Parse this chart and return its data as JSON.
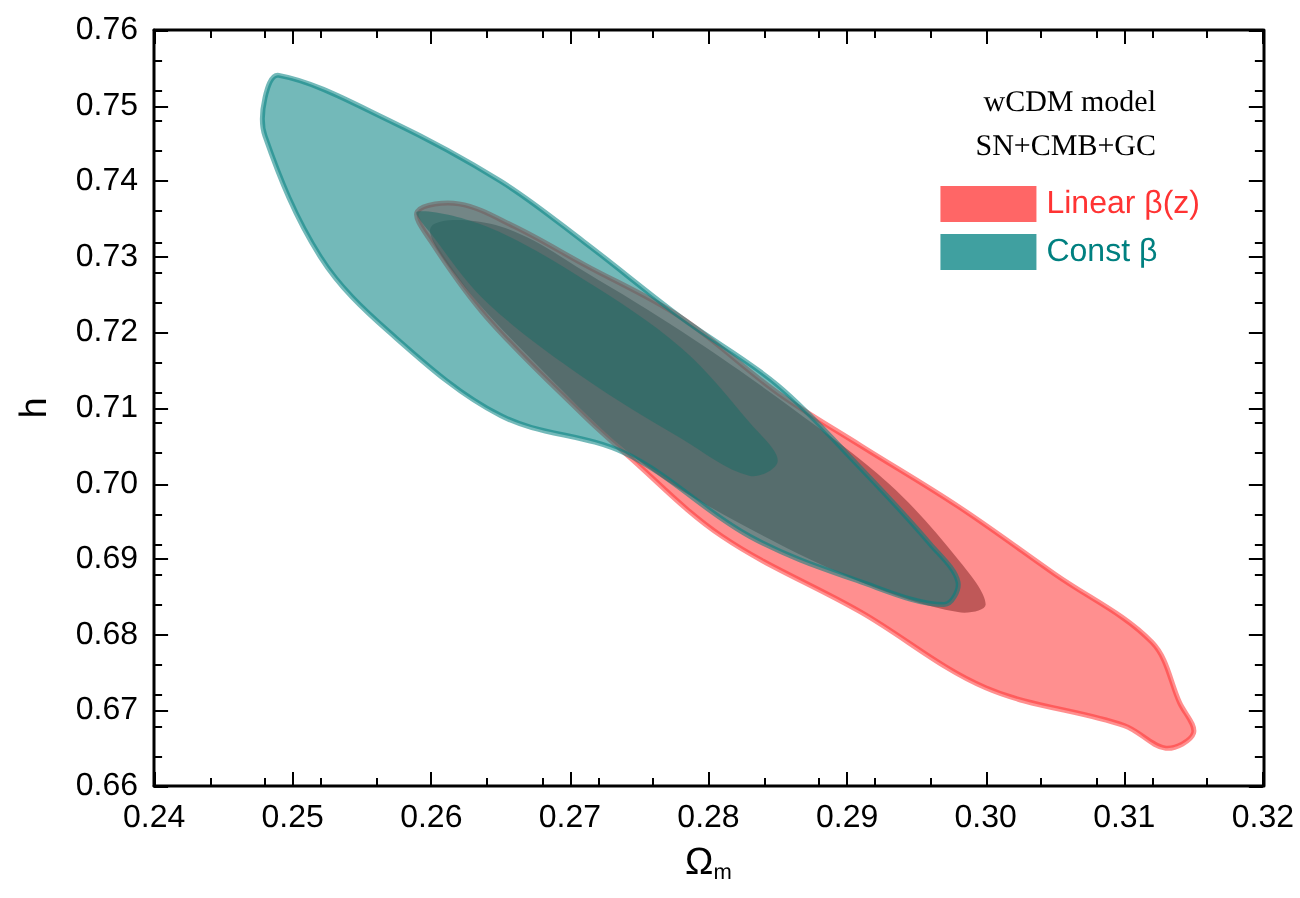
{
  "chart_data": {
    "type": "area",
    "xlabel": "Ω$_{m}$",
    "ylabel": "h",
    "annotations": [
      "wCDM model",
      "SN+CMB+GC"
    ],
    "xlim": [
      0.24,
      0.32
    ],
    "xticks": [
      0.24,
      0.25,
      0.26,
      0.27,
      0.28,
      0.29,
      {
        "value": 0.3,
        "label": "0.30"
      },
      0.31,
      {
        "value": 0.32,
        "label": "0.32"
      }
    ],
    "ylim": [
      0.66,
      0.76
    ],
    "yticks": [
      0.66,
      0.67,
      0.68,
      0.69,
      {
        "value": 0.7,
        "label": "0.70"
      },
      0.71,
      0.72,
      0.73,
      0.74,
      0.75,
      0.76
    ],
    "grid": false,
    "legend": "top right",
    "series": [
      {
        "name": "Linear β(z)",
        "color": "#ff3333",
        "x": [
          0.259,
          0.262,
          0.266,
          0.271,
          0.278,
          0.285,
          0.291,
          0.298,
          0.305,
          0.312,
          0.314,
          0.315,
          0.313,
          0.31,
          0.3,
          0.291,
          0.281,
          0.274,
          0.271,
          0.264,
          0.26
        ],
        "values": [
          0.736,
          0.737,
          0.734,
          0.729,
          0.722,
          0.712,
          0.705,
          0.697,
          0.688,
          0.679,
          0.671,
          0.667,
          0.665,
          0.668,
          0.673,
          0.683,
          0.693,
          0.704,
          0.709,
          0.722,
          0.732
        ]
      },
      {
        "color": "#8b2c2c",
        "x": [
          0.26,
          0.265,
          0.272,
          0.279,
          0.286,
          0.293,
          0.298,
          0.3,
          0.298,
          0.291,
          0.282,
          0.275,
          0.268,
          0.262
        ],
        "values": [
          0.734,
          0.734,
          0.727,
          0.719,
          0.71,
          0.7,
          0.69,
          0.684,
          0.683,
          0.687,
          0.695,
          0.703,
          0.715,
          0.727
        ]
      },
      {
        "name": "Const β",
        "color": "#008080",
        "x": [
          0.248,
          0.249,
          0.257,
          0.265,
          0.271,
          0.278,
          0.285,
          0.291,
          0.296,
          0.298,
          0.297,
          0.291,
          0.283,
          0.274,
          0.265,
          0.257,
          0.252,
          0.248
        ],
        "values": [
          0.751,
          0.754,
          0.748,
          0.74,
          0.732,
          0.722,
          0.713,
          0.702,
          0.692,
          0.687,
          0.684,
          0.687,
          0.693,
          0.704,
          0.709,
          0.72,
          0.73,
          0.746
        ]
      },
      {
        "color": "#1f6b66",
        "x": [
          0.259,
          0.264,
          0.271,
          0.278,
          0.283,
          0.285,
          0.283,
          0.278,
          0.271,
          0.264,
          0.26
        ],
        "values": [
          0.736,
          0.734,
          0.727,
          0.718,
          0.708,
          0.703,
          0.701,
          0.706,
          0.714,
          0.724,
          0.733
        ]
      }
    ]
  }
}
